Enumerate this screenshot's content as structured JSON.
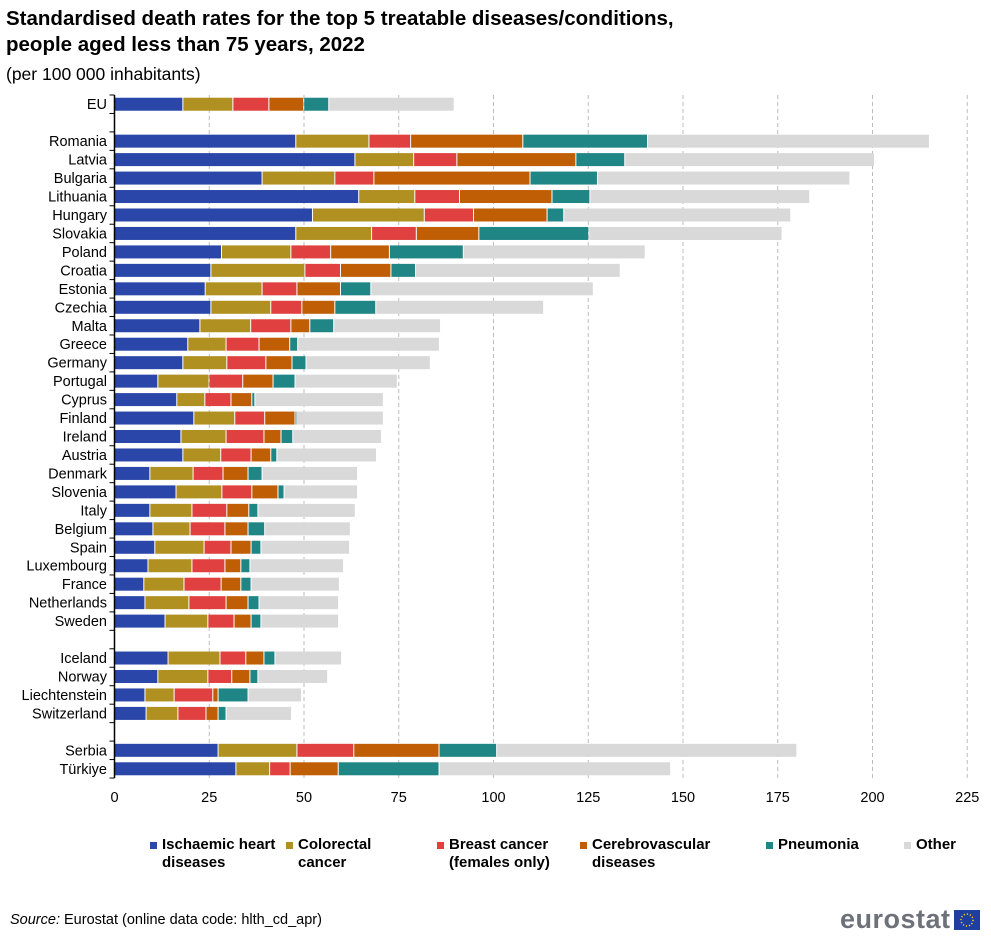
{
  "title_line1": "Standardised death rates for the top 5 treatable diseases/conditions,",
  "title_line2": "people aged less than 75 years, 2022",
  "subtitle": "(per 100 000 inhabitants)",
  "source_label": "Source:",
  "source_text": "Eurostat (online data code: hlth_cd_apr)",
  "logo_text": "eurostat",
  "chart_data": {
    "type": "bar",
    "orientation": "horizontal",
    "stacked": true,
    "title": "Standardised death rates for the top 5 treatable diseases/conditions, people aged less than 75 years, 2022",
    "subtitle": "(per 100 000 inhabitants)",
    "xlim": [
      0,
      225
    ],
    "xticks": [
      0,
      25,
      50,
      75,
      100,
      125,
      150,
      175,
      200,
      225
    ],
    "grid": "vertical dashed",
    "legend_position": "bottom",
    "categories": [
      "EU",
      "",
      "Romania",
      "Latvia",
      "Bulgaria",
      "Lithuania",
      "Hungary",
      "Slovakia",
      "Poland",
      "Croatia",
      "Estonia",
      "Czechia",
      "Malta",
      "Greece",
      "Germany",
      "Portugal",
      "Cyprus",
      "Finland",
      "Ireland",
      "Austria",
      "Denmark",
      "Slovenia",
      "Italy",
      "Belgium",
      "Spain",
      "Luxembourg",
      "France",
      "Netherlands",
      "Sweden",
      "",
      "Iceland",
      "Norway",
      "Liechtenstein",
      "Switzerland",
      "",
      "Serbia",
      "Türkiye"
    ],
    "series": [
      {
        "name": "Ischaemic heart diseases",
        "color": "#2946a8",
        "values": [
          17.9,
          null,
          47.7,
          63.3,
          38.8,
          64.3,
          52.1,
          47.7,
          28.1,
          25.3,
          23.8,
          25.3,
          22.4,
          19.2,
          17.9,
          11.3,
          16.3,
          20.8,
          17.4,
          17.9,
          9.2,
          16.1,
          9.2,
          10.0,
          10.5,
          8.7,
          7.6,
          7.9,
          13.2,
          null,
          14.0,
          11.3,
          7.9,
          8.2,
          null,
          27.2,
          31.9
        ]
      },
      {
        "name": "Colorectal cancer",
        "color": "#b09020",
        "values": [
          13.2,
          null,
          19.3,
          15.5,
          19.2,
          14.8,
          29.5,
          20.0,
          18.3,
          24.8,
          15.0,
          15.8,
          13.4,
          10.1,
          11.6,
          13.5,
          7.4,
          10.8,
          11.9,
          10.0,
          11.4,
          12.1,
          11.1,
          9.8,
          13.0,
          11.6,
          10.6,
          11.6,
          11.3,
          null,
          13.7,
          13.2,
          7.7,
          8.4,
          null,
          20.8,
          8.9
        ]
      },
      {
        "name": "Breast cancer (females only)",
        "color": "#e04040",
        "values": [
          9.5,
          null,
          11.0,
          11.4,
          10.3,
          11.8,
          13.0,
          11.8,
          10.5,
          9.4,
          9.2,
          8.2,
          10.6,
          8.7,
          10.3,
          8.9,
          6.9,
          7.9,
          10.0,
          8.0,
          7.9,
          7.9,
          9.2,
          9.2,
          7.1,
          8.7,
          9.8,
          9.8,
          6.9,
          null,
          6.8,
          6.3,
          10.2,
          7.4,
          null,
          15.0,
          5.4
        ]
      },
      {
        "name": "Cerebrovascular diseases",
        "color": "#c05e05",
        "values": [
          9.2,
          null,
          29.6,
          31.4,
          41.2,
          24.4,
          19.4,
          16.5,
          15.5,
          13.3,
          11.5,
          8.7,
          5.0,
          8.1,
          6.9,
          8.0,
          5.5,
          8.0,
          4.5,
          5.2,
          6.6,
          6.9,
          5.8,
          6.1,
          5.3,
          4.2,
          5.2,
          5.8,
          4.5,
          null,
          4.8,
          4.8,
          1.4,
          3.2,
          null,
          22.5,
          12.7
        ]
      },
      {
        "name": "Pneumonia",
        "color": "#208585",
        "values": [
          6.6,
          null,
          32.9,
          12.9,
          17.8,
          10.0,
          4.4,
          29.0,
          19.5,
          6.5,
          8.0,
          10.8,
          6.3,
          2.1,
          3.7,
          5.8,
          0.8,
          0.3,
          3.1,
          1.6,
          3.7,
          1.6,
          2.4,
          4.4,
          2.6,
          2.4,
          2.7,
          2.9,
          2.6,
          null,
          2.9,
          2.1,
          7.9,
          2.1,
          null,
          15.2,
          26.6
        ]
      },
      {
        "name": "Other",
        "color": "#d9d9d9",
        "values": [
          33.1,
          null,
          74.4,
          65.9,
          66.6,
          58.0,
          59.9,
          51.0,
          48.0,
          54.0,
          58.7,
          44.3,
          28.2,
          37.4,
          32.8,
          27.0,
          33.9,
          23.0,
          23.4,
          26.3,
          25.2,
          19.4,
          25.7,
          22.6,
          23.4,
          24.7,
          23.3,
          21.0,
          20.5,
          null,
          17.6,
          18.4,
          14.1,
          17.3,
          null,
          79.2,
          61.1
        ]
      }
    ]
  }
}
